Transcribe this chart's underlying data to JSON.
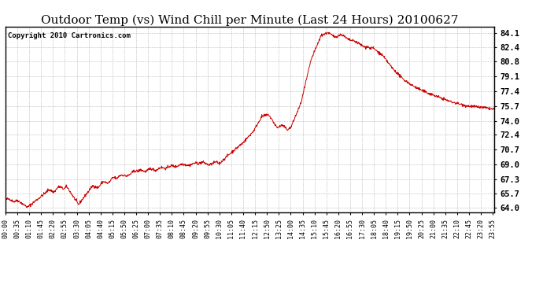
{
  "title": "Outdoor Temp (vs) Wind Chill per Minute (Last 24 Hours) 20100627",
  "copyright": "Copyright 2010 Cartronics.com",
  "yticks": [
    64.0,
    65.7,
    67.3,
    69.0,
    70.7,
    72.4,
    74.0,
    75.7,
    77.4,
    79.1,
    80.8,
    82.4,
    84.1
  ],
  "ylim": [
    63.5,
    84.8
  ],
  "line_color": "#cc0000",
  "background_color": "#ffffff",
  "grid_color": "#aaaaaa",
  "title_fontsize": 11,
  "copyright_fontsize": 6.5,
  "ylabel_fontsize": 7.5,
  "xlabel_fontsize": 6
}
